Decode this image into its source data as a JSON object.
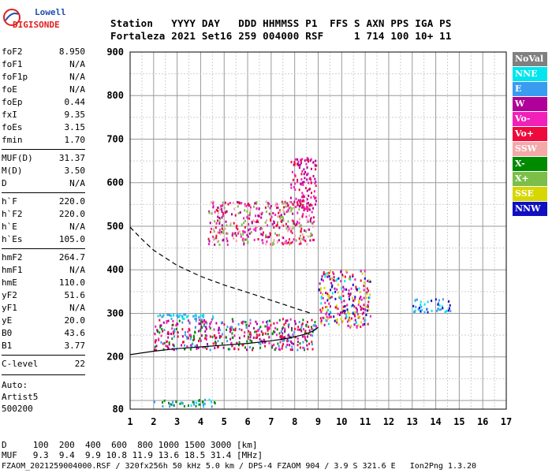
{
  "logo": {
    "line1": "Lowell",
    "line2": "DIGISONDE"
  },
  "header": {
    "labels": "Station   YYYY DAY   DDD HHMMSS P1  FFS S AXN PPS IGA PS",
    "values": "Fortaleza 2021 Set16 259 004000 RSF     1 714 100 10+ 11"
  },
  "params_group1": [
    {
      "name": "foF2",
      "value": "8.950"
    },
    {
      "name": "foF1",
      "value": "N/A"
    },
    {
      "name": "foF1p",
      "value": "N/A"
    },
    {
      "name": "foE",
      "value": "N/A"
    },
    {
      "name": "foEp",
      "value": "0.44"
    },
    {
      "name": "fxI",
      "value": "9.35"
    },
    {
      "name": "foEs",
      "value": "3.15"
    },
    {
      "name": "fmin",
      "value": "1.70"
    }
  ],
  "params_group2": [
    {
      "name": "MUF(D)",
      "value": "31.37"
    },
    {
      "name": "M(D)",
      "value": "3.50"
    },
    {
      "name": "D",
      "value": "N/A"
    }
  ],
  "params_group3": [
    {
      "name": "h`F",
      "value": "220.0"
    },
    {
      "name": "h`F2",
      "value": "220.0"
    },
    {
      "name": "h`E",
      "value": "N/A"
    },
    {
      "name": "h`Es",
      "value": "105.0"
    }
  ],
  "params_group4": [
    {
      "name": "hmF2",
      "value": "264.7"
    },
    {
      "name": "hmF1",
      "value": "N/A"
    },
    {
      "name": "hmE",
      "value": "110.0"
    },
    {
      "name": "yF2",
      "value": "51.6"
    },
    {
      "name": "yF1",
      "value": "N/A"
    },
    {
      "name": "yE",
      "value": "20.0"
    },
    {
      "name": "B0",
      "value": "43.6"
    },
    {
      "name": "B1",
      "value": "3.77"
    }
  ],
  "params_group5": [
    {
      "name": "C-level",
      "value": "22"
    }
  ],
  "auto_lines": [
    "Auto:",
    "Artist5",
    "500200"
  ],
  "legend": [
    {
      "label": "NoVal",
      "color": "#808080"
    },
    {
      "label": "NNE",
      "color": "#00e5ee"
    },
    {
      "label": "E",
      "color": "#3a9cf0"
    },
    {
      "label": "W",
      "color": "#b0009a"
    },
    {
      "label": "Vo-",
      "color": "#f020b8"
    },
    {
      "label": "Vo+",
      "color": "#ee0a3c"
    },
    {
      "label": "SSW",
      "color": "#f4a8a8"
    },
    {
      "label": "X-",
      "color": "#008a00"
    },
    {
      "label": "X+",
      "color": "#7cbe4a"
    },
    {
      "label": "SSE",
      "color": "#d6d600"
    },
    {
      "label": "NNW",
      "color": "#1010c0"
    }
  ],
  "footer": {
    "d_row": "D     100  200  400  600  800 1000 1500 3000 [km]",
    "muf_row": "MUF   9.3  9.4  9.9 10.8 11.9 13.6 18.5 31.4 [MHz]",
    "info_row": "FZAOM_2021259004000.RSF / 320fx256h 50 kHz 5.0 km / DPS-4 FZAOM 904 / 3.9 S 321.6 E   Ion2Png 1.3.20"
  },
  "chart_data": {
    "type": "scatter",
    "title": "",
    "xlabel": "",
    "ylabel": "",
    "xlim": [
      1,
      17
    ],
    "ylim": [
      80,
      900
    ],
    "xticks": [
      1,
      2,
      3,
      4,
      5,
      6,
      7,
      8,
      9,
      10,
      11,
      12,
      13,
      14,
      15,
      16,
      17
    ],
    "yticks": [
      80,
      200,
      300,
      400,
      500,
      600,
      700,
      800,
      900
    ],
    "grid": true,
    "traces": [
      {
        "name": "",
        "style": "solid",
        "points": [
          [
            1.0,
            205
          ],
          [
            2,
            213
          ],
          [
            3,
            219
          ],
          [
            4,
            223
          ],
          [
            5,
            227
          ],
          [
            6,
            231
          ],
          [
            7,
            237
          ],
          [
            7.5,
            241
          ],
          [
            8,
            246
          ],
          [
            8.5,
            253
          ],
          [
            8.8,
            260
          ],
          [
            9.0,
            268
          ]
        ]
      },
      {
        "name": "",
        "style": "dashed",
        "points": [
          [
            1.0,
            498
          ],
          [
            1.5,
            470
          ],
          [
            2,
            445
          ],
          [
            3,
            410
          ],
          [
            4,
            385
          ],
          [
            5,
            365
          ],
          [
            6,
            348
          ],
          [
            7,
            330
          ],
          [
            8,
            312
          ],
          [
            8.7,
            300
          ]
        ]
      }
    ],
    "echo_regions": [
      {
        "x": [
          2.0,
          8.9
        ],
        "y": [
          218,
          290
        ],
        "colors": [
          "W",
          "Vo-",
          "Vo+",
          "E",
          "X-"
        ]
      },
      {
        "x": [
          2.1,
          4.5
        ],
        "y": [
          290,
          300
        ],
        "colors": [
          "E",
          "NNE"
        ]
      },
      {
        "x": [
          4.3,
          8.8
        ],
        "y": [
          460,
          560
        ],
        "colors": [
          "Vo-",
          "W",
          "Vo+",
          "SSW",
          "X+"
        ]
      },
      {
        "x": [
          7.8,
          8.9
        ],
        "y": [
          540,
          660
        ],
        "colors": [
          "Vo-",
          "W",
          "Vo+"
        ]
      },
      {
        "x": [
          9.0,
          11.2
        ],
        "y": [
          270,
          400
        ],
        "colors": [
          "W",
          "Vo-",
          "NNE",
          "Vo+",
          "NNW",
          "SSE"
        ]
      },
      {
        "x": [
          13.0,
          14.6
        ],
        "y": [
          305,
          335
        ],
        "colors": [
          "E",
          "NNE",
          "NNW"
        ]
      },
      {
        "x": [
          2.0,
          4.7
        ],
        "y": [
          88,
          105
        ],
        "colors": [
          "E",
          "NNE",
          "X-"
        ]
      }
    ]
  }
}
